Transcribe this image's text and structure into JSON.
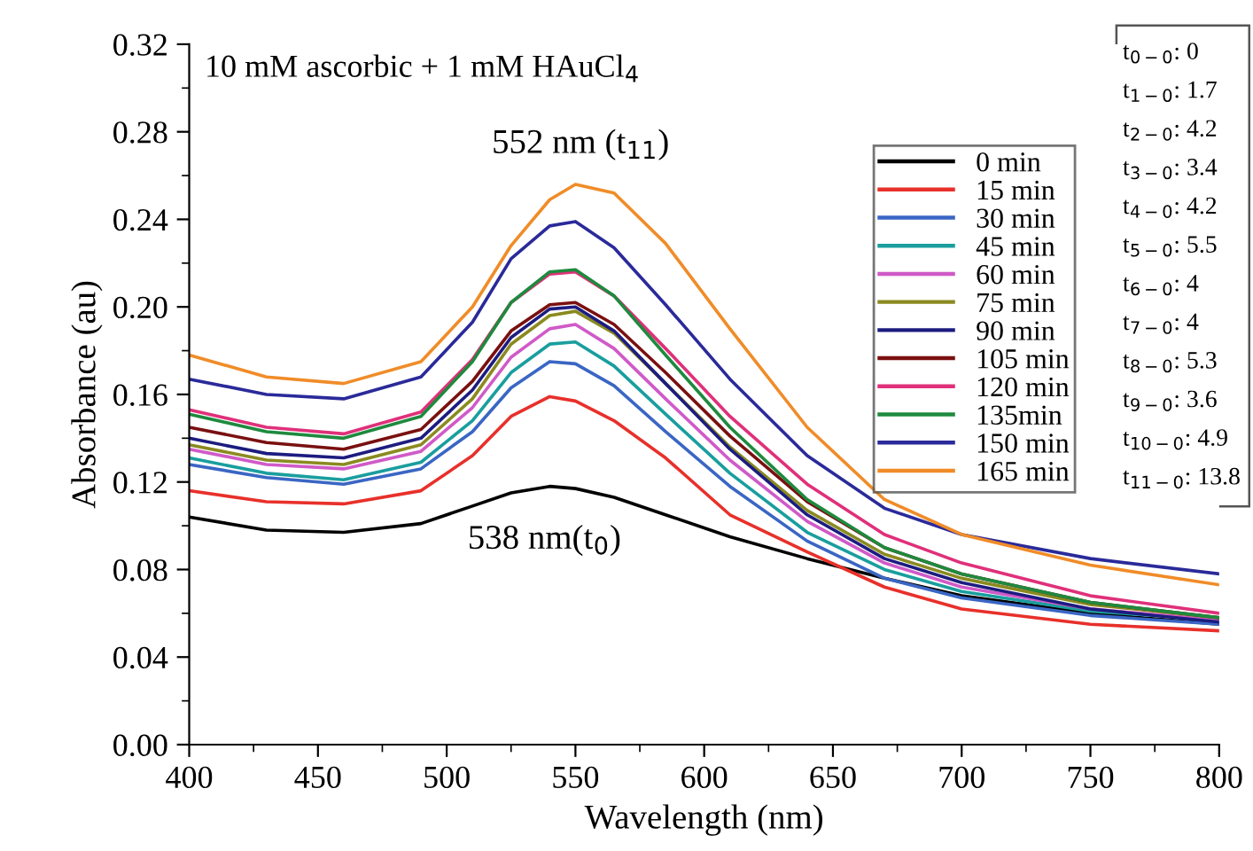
{
  "chart_data": {
    "type": "line",
    "title": "10 mM ascorbic + 1 mM HAuCl$_{4}$",
    "xlabel": "Wavelength (nm)",
    "ylabel": "Absorbance (au)",
    "x": [
      400,
      430,
      460,
      490,
      510,
      525,
      540,
      550,
      565,
      585,
      610,
      640,
      670,
      700,
      750,
      800
    ],
    "xlim": [
      400,
      800
    ],
    "xticks": [
      400,
      450,
      500,
      550,
      600,
      650,
      700,
      750,
      800
    ],
    "ylim": [
      0,
      0.32
    ],
    "yticks": [
      {
        "value": 0,
        "label": "0.00"
      },
      {
        "value": 0.04,
        "label": "0.04"
      },
      {
        "value": 0.08,
        "label": "0.08"
      },
      {
        "value": 0.12,
        "label": "0.12"
      },
      {
        "value": 0.16,
        "label": "0.16"
      },
      {
        "value": 0.2,
        "label": "0.20"
      },
      {
        "value": 0.24,
        "label": "0.24"
      },
      {
        "value": 0.28,
        "label": "0.28"
      },
      {
        "value": 0.32,
        "label": "0.32"
      }
    ],
    "grid": false,
    "legend": "top right",
    "marker": "none",
    "line_style": "solid",
    "series": [
      {
        "name": "0 min",
        "color": "#000000",
        "values": [
          0.104,
          0.098,
          0.097,
          0.101,
          0.109,
          0.115,
          0.118,
          0.117,
          0.113,
          0.105,
          0.095,
          0.085,
          0.076,
          0.068,
          0.06,
          0.055
        ]
      },
      {
        "name": "15 min",
        "color": "#e8302a",
        "values": [
          0.116,
          0.111,
          0.11,
          0.116,
          0.132,
          0.15,
          0.159,
          0.157,
          0.148,
          0.131,
          0.105,
          0.088,
          0.072,
          0.062,
          0.055,
          0.052
        ]
      },
      {
        "name": "30 min",
        "color": "#3a66c4",
        "values": [
          0.128,
          0.122,
          0.119,
          0.126,
          0.143,
          0.163,
          0.175,
          0.174,
          0.164,
          0.143,
          0.118,
          0.093,
          0.076,
          0.067,
          0.059,
          0.055
        ]
      },
      {
        "name": "45 min",
        "color": "#1a9e9e",
        "values": [
          0.131,
          0.124,
          0.121,
          0.129,
          0.148,
          0.17,
          0.183,
          0.184,
          0.173,
          0.151,
          0.124,
          0.097,
          0.08,
          0.07,
          0.061,
          0.057
        ]
      },
      {
        "name": "60 min",
        "color": "#d05ac8",
        "values": [
          0.135,
          0.128,
          0.126,
          0.134,
          0.154,
          0.177,
          0.19,
          0.192,
          0.181,
          0.158,
          0.13,
          0.102,
          0.083,
          0.072,
          0.062,
          0.057
        ]
      },
      {
        "name": "75 min",
        "color": "#8a8a20",
        "values": [
          0.137,
          0.13,
          0.128,
          0.137,
          0.158,
          0.183,
          0.196,
          0.198,
          0.188,
          0.165,
          0.136,
          0.107,
          0.087,
          0.076,
          0.064,
          0.058
        ]
      },
      {
        "name": "90 min",
        "color": "#1c1c80",
        "values": [
          0.14,
          0.133,
          0.131,
          0.14,
          0.162,
          0.186,
          0.199,
          0.2,
          0.189,
          0.165,
          0.135,
          0.105,
          0.085,
          0.074,
          0.062,
          0.056
        ]
      },
      {
        "name": "105 min",
        "color": "#7a1010",
        "values": [
          0.145,
          0.138,
          0.135,
          0.144,
          0.166,
          0.189,
          0.201,
          0.202,
          0.192,
          0.17,
          0.141,
          0.111,
          0.09,
          0.078,
          0.065,
          0.058
        ]
      },
      {
        "name": "120 min",
        "color": "#e0307a",
        "values": [
          0.153,
          0.145,
          0.142,
          0.152,
          0.176,
          0.202,
          0.215,
          0.216,
          0.205,
          0.181,
          0.15,
          0.119,
          0.096,
          0.083,
          0.068,
          0.06
        ]
      },
      {
        "name": "135min",
        "color": "#1e8a3e",
        "values": [
          0.151,
          0.143,
          0.14,
          0.15,
          0.175,
          0.202,
          0.216,
          0.217,
          0.205,
          0.178,
          0.145,
          0.112,
          0.09,
          0.078,
          0.065,
          0.058
        ]
      },
      {
        "name": "150 min",
        "color": "#2a2a9a",
        "values": [
          0.167,
          0.16,
          0.158,
          0.168,
          0.193,
          0.222,
          0.237,
          0.239,
          0.227,
          0.201,
          0.167,
          0.132,
          0.108,
          0.096,
          0.085,
          0.078
        ]
      },
      {
        "name": "165 min",
        "color": "#f08c28",
        "values": [
          0.178,
          0.168,
          0.165,
          0.175,
          0.2,
          0.228,
          0.249,
          0.256,
          0.252,
          0.229,
          0.19,
          0.145,
          0.112,
          0.096,
          0.082,
          0.073
        ]
      }
    ],
    "annotations": [
      {
        "text": "552 nm (t$_{11}$)",
        "x": 552,
        "y": 0.256
      },
      {
        "text": "538 nm(t$_{0}$)",
        "x": 538,
        "y": 0.118
      },
      "t$_{0−0}$: 0",
      "t$_{1−0}$: 1.7",
      "t$_{2−0}$: 4.2",
      "t$_{3−0}$: 3.4",
      "t$_{4−0}$: 4.2",
      "t$_{5−0}$: 5.5",
      "t$_{6−0}$: 4",
      "t$_{7−0}$: 4",
      "t$_{8−0}$: 5.3",
      "t$_{9−0}$: 3.6",
      "t$_{10−0}$: 4.9",
      "t$_{11−0}$: 13.8"
    ]
  }
}
